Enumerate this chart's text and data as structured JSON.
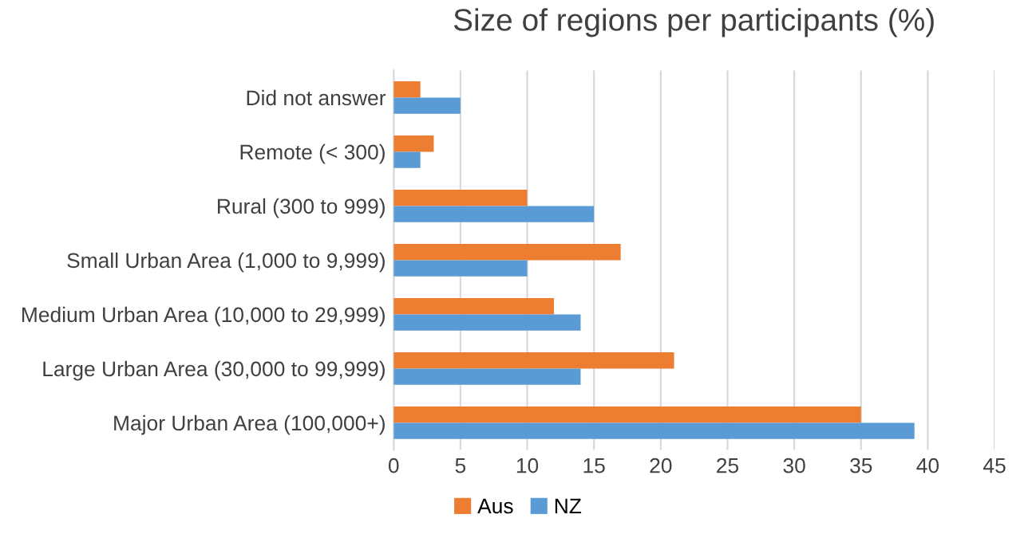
{
  "chart_data": {
    "type": "bar",
    "orientation": "horizontal",
    "title": "Size of regions per participants (%)",
    "categories": [
      "Did not answer",
      "Remote (< 300)",
      "Rural (300 to 999)",
      "Small Urban Area (1,000 to 9,999)",
      "Medium Urban Area (10,000 to 29,999)",
      "Large Urban Area (30,000 to 99,999)",
      "Major Urban Area (100,000+)"
    ],
    "series": [
      {
        "name": "Aus",
        "color": "#ed7d31",
        "values": [
          2,
          3,
          10,
          17,
          12,
          21,
          35
        ]
      },
      {
        "name": "NZ",
        "color": "#5b9bd5",
        "values": [
          5,
          2,
          15,
          10,
          14,
          14,
          39
        ]
      }
    ],
    "xlim": [
      0,
      45
    ],
    "xticks": [
      0,
      5,
      10,
      15,
      20,
      25,
      30,
      35,
      40,
      45
    ],
    "grid": "x",
    "legend": "bottom"
  }
}
